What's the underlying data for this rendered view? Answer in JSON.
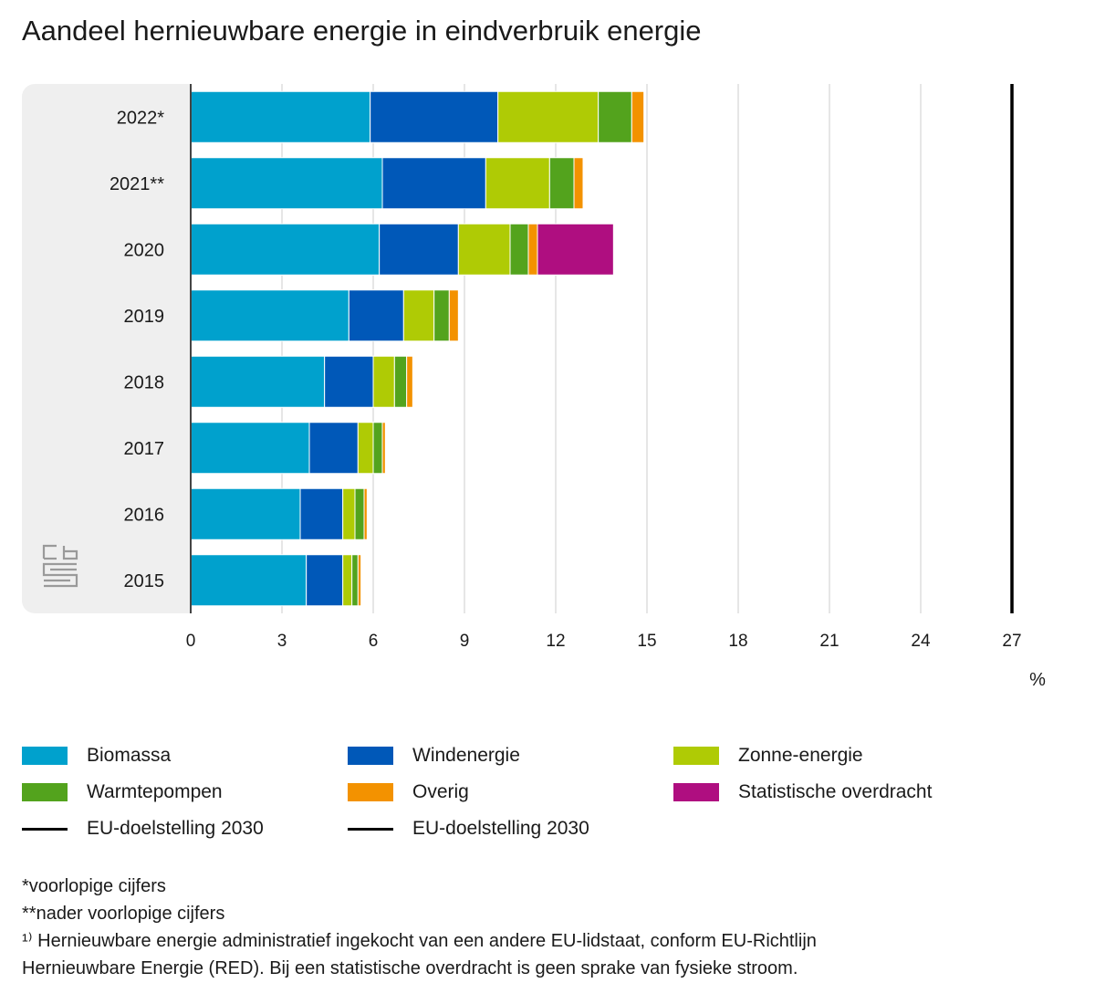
{
  "title": "Aandeel hernieuwbare energie in eindverbruik energie",
  "colors": {
    "Biomassa": "#00a1cd",
    "Windenergie": "#0058b8",
    "Zonne-energie": "#afcb05",
    "Warmtepompen": "#53a31d",
    "Overig": "#f39200",
    "Statistische overdracht": "#af0e80",
    "target_line": "#000000",
    "band": "#efefef",
    "grid": "#cccccc"
  },
  "legend": [
    {
      "label": "Biomassa",
      "kind": "swatch"
    },
    {
      "label": "Windenergie",
      "kind": "swatch"
    },
    {
      "label": "Zonne-energie",
      "kind": "swatch"
    },
    {
      "label": "Warmtepompen",
      "kind": "swatch"
    },
    {
      "label": "Overig",
      "kind": "swatch"
    },
    {
      "label": "Statistische overdracht",
      "kind": "swatch"
    },
    {
      "label": "EU-doelstelling 2030",
      "kind": "line"
    },
    {
      "label": "EU-doelstelling 2030",
      "kind": "line"
    }
  ],
  "footnotes": [
    "*voorlopige cijfers",
    "**nader voorlopige cijfers",
    "¹⁾ Hernieuwbare energie administratief ingekocht van een andere EU-lidstaat, conform EU-Richtlijn",
    "Hernieuwbare Energie (RED). Bij een statistische overdracht is geen sprake van fysieke stroom."
  ],
  "chart_data": {
    "type": "bar",
    "orientation": "horizontal",
    "stacked": true,
    "categories": [
      "2022*",
      "2021**",
      "2020",
      "2019",
      "2018",
      "2017",
      "2016",
      "2015"
    ],
    "series": [
      {
        "name": "Biomassa",
        "values": [
          5.9,
          6.3,
          6.2,
          5.2,
          4.4,
          3.9,
          3.6,
          3.8
        ]
      },
      {
        "name": "Windenergie",
        "values": [
          4.2,
          3.4,
          2.6,
          1.8,
          1.6,
          1.6,
          1.4,
          1.2
        ]
      },
      {
        "name": "Zonne-energie",
        "values": [
          3.3,
          2.1,
          1.7,
          1.0,
          0.7,
          0.5,
          0.4,
          0.3
        ]
      },
      {
        "name": "Warmtepompen",
        "values": [
          1.1,
          0.8,
          0.6,
          0.5,
          0.4,
          0.3,
          0.3,
          0.2
        ]
      },
      {
        "name": "Overig",
        "values": [
          0.4,
          0.3,
          0.3,
          0.3,
          0.2,
          0.1,
          0.1,
          0.1
        ]
      },
      {
        "name": "Statistische overdracht",
        "values": [
          0,
          0,
          2.5,
          0,
          0,
          0,
          0,
          0
        ]
      }
    ],
    "target_line": {
      "name": "EU-doelstelling 2030",
      "value": 27
    },
    "xlim": [
      0,
      27
    ],
    "xticks": [
      0,
      3,
      6,
      9,
      12,
      15,
      18,
      21,
      24,
      27
    ],
    "xlabel": "%",
    "grid": true
  }
}
